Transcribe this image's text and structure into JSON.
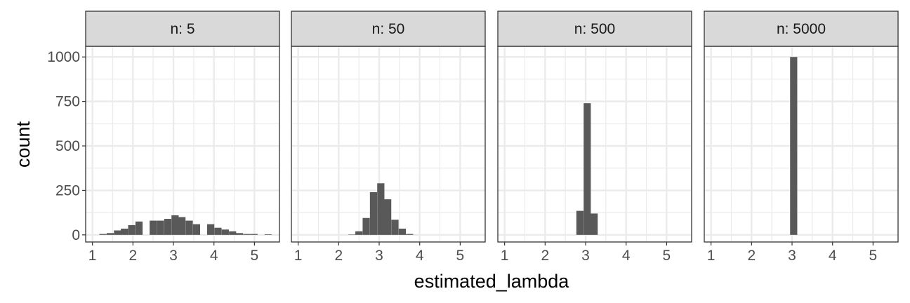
{
  "chart_data": {
    "type": "bar",
    "subtype": "faceted-histogram",
    "xlabel": "estimated_lambda",
    "ylabel": "count",
    "xlim": [
      0.85,
      5.6
    ],
    "ylim": [
      -40,
      1060
    ],
    "x_ticks": [
      1,
      2,
      3,
      4,
      5
    ],
    "y_ticks": [
      0,
      250,
      500,
      750,
      1000
    ],
    "bin_width": 0.177,
    "bar_color": "#595959",
    "grid": true,
    "legend": "none",
    "facets": [
      {
        "label": "n: 5",
        "bins": [
          {
            "x": 1.26,
            "count": 5
          },
          {
            "x": 1.44,
            "count": 10
          },
          {
            "x": 1.62,
            "count": 25
          },
          {
            "x": 1.79,
            "count": 35
          },
          {
            "x": 1.97,
            "count": 55
          },
          {
            "x": 2.15,
            "count": 75
          },
          {
            "x": 2.5,
            "count": 80
          },
          {
            "x": 2.68,
            "count": 80
          },
          {
            "x": 2.86,
            "count": 90
          },
          {
            "x": 3.04,
            "count": 110
          },
          {
            "x": 3.21,
            "count": 100
          },
          {
            "x": 3.39,
            "count": 80
          },
          {
            "x": 3.57,
            "count": 60
          },
          {
            "x": 3.92,
            "count": 60
          },
          {
            "x": 4.1,
            "count": 40
          },
          {
            "x": 4.28,
            "count": 30
          },
          {
            "x": 4.46,
            "count": 20
          },
          {
            "x": 4.63,
            "count": 10
          },
          {
            "x": 4.81,
            "count": 5
          },
          {
            "x": 4.99,
            "count": 5
          },
          {
            "x": 5.34,
            "count": 3
          }
        ]
      },
      {
        "label": "n: 50",
        "bins": [
          {
            "x": 2.33,
            "count": 2
          },
          {
            "x": 2.5,
            "count": 20
          },
          {
            "x": 2.68,
            "count": 95
          },
          {
            "x": 2.86,
            "count": 240
          },
          {
            "x": 3.04,
            "count": 290
          },
          {
            "x": 3.21,
            "count": 200
          },
          {
            "x": 3.39,
            "count": 85
          },
          {
            "x": 3.57,
            "count": 35
          },
          {
            "x": 3.75,
            "count": 5
          }
        ]
      },
      {
        "label": "n: 500",
        "bins": [
          {
            "x": 2.86,
            "count": 135
          },
          {
            "x": 3.04,
            "count": 740
          },
          {
            "x": 3.21,
            "count": 120
          }
        ]
      },
      {
        "label": "n: 5000",
        "bins": [
          {
            "x": 3.04,
            "count": 1000
          }
        ]
      }
    ]
  }
}
